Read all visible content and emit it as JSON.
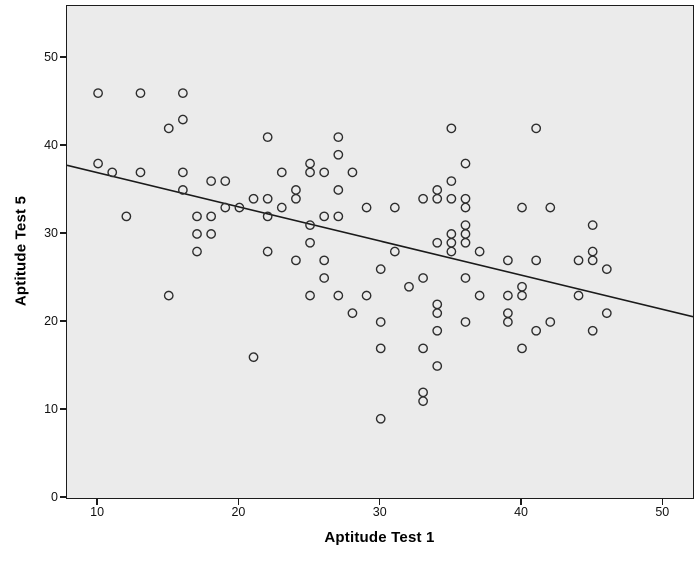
{
  "figure": {
    "kind": "scatterplot-with-fit-line",
    "background_color": "#ffffff",
    "panel_color": "#ebebeb",
    "frame_color": "#1c1c1c",
    "marker_color": "#2d2d2d",
    "fit_line_color": "#1a1a1a"
  },
  "chart_data": {
    "type": "scatter",
    "title": "",
    "xlabel": "Aptitude Test 1",
    "ylabel": "Aptitude Test 5",
    "xlim": [
      7.8,
      52.1
    ],
    "ylim": [
      0,
      55.9
    ],
    "x_ticks": [
      10,
      20,
      30,
      40,
      50
    ],
    "y_ticks": [
      0,
      10,
      20,
      30,
      40,
      50
    ],
    "grid": false,
    "legend": "none",
    "fit_line": {
      "x1": 7.8,
      "y1": 37.8,
      "x2": 52.1,
      "y2": 20.6
    },
    "points": [
      [
        10,
        46
      ],
      [
        13,
        46
      ],
      [
        16,
        46
      ],
      [
        16,
        43
      ],
      [
        15,
        42
      ],
      [
        35,
        42
      ],
      [
        41,
        42
      ],
      [
        22,
        41
      ],
      [
        27,
        41
      ],
      [
        27,
        39
      ],
      [
        10,
        38
      ],
      [
        25,
        38
      ],
      [
        36,
        38
      ],
      [
        11,
        37
      ],
      [
        13,
        37
      ],
      [
        16,
        37
      ],
      [
        23,
        37
      ],
      [
        25,
        37
      ],
      [
        26,
        37
      ],
      [
        28,
        37
      ],
      [
        18,
        36
      ],
      [
        19,
        36
      ],
      [
        35,
        36
      ],
      [
        16,
        35
      ],
      [
        24,
        35
      ],
      [
        27,
        35
      ],
      [
        34,
        35
      ],
      [
        21,
        34
      ],
      [
        22,
        34
      ],
      [
        24,
        34
      ],
      [
        33,
        34
      ],
      [
        34,
        34
      ],
      [
        35,
        34
      ],
      [
        36,
        34
      ],
      [
        19,
        33
      ],
      [
        20,
        33
      ],
      [
        23,
        33
      ],
      [
        29,
        33
      ],
      [
        31,
        33
      ],
      [
        36,
        33
      ],
      [
        40,
        33
      ],
      [
        42,
        33
      ],
      [
        12,
        32
      ],
      [
        17,
        32
      ],
      [
        18,
        32
      ],
      [
        22,
        32
      ],
      [
        26,
        32
      ],
      [
        27,
        32
      ],
      [
        25,
        31
      ],
      [
        36,
        31
      ],
      [
        45,
        31
      ],
      [
        17,
        30
      ],
      [
        18,
        30
      ],
      [
        35,
        30
      ],
      [
        36,
        30
      ],
      [
        25,
        29
      ],
      [
        34,
        29
      ],
      [
        35,
        29
      ],
      [
        36,
        29
      ],
      [
        17,
        28
      ],
      [
        22,
        28
      ],
      [
        31,
        28
      ],
      [
        35,
        28
      ],
      [
        37,
        28
      ],
      [
        45,
        28
      ],
      [
        24,
        27
      ],
      [
        26,
        27
      ],
      [
        39,
        27
      ],
      [
        41,
        27
      ],
      [
        44,
        27
      ],
      [
        45,
        27
      ],
      [
        30,
        26
      ],
      [
        46,
        26
      ],
      [
        26,
        25
      ],
      [
        33,
        25
      ],
      [
        36,
        25
      ],
      [
        32,
        24
      ],
      [
        40,
        24
      ],
      [
        15,
        23
      ],
      [
        25,
        23
      ],
      [
        27,
        23
      ],
      [
        29,
        23
      ],
      [
        37,
        23
      ],
      [
        39,
        23
      ],
      [
        40,
        23
      ],
      [
        44,
        23
      ],
      [
        34,
        22
      ],
      [
        28,
        21
      ],
      [
        34,
        21
      ],
      [
        39,
        21
      ],
      [
        46,
        21
      ],
      [
        30,
        20
      ],
      [
        36,
        20
      ],
      [
        39,
        20
      ],
      [
        42,
        20
      ],
      [
        34,
        19
      ],
      [
        41,
        19
      ],
      [
        45,
        19
      ],
      [
        30,
        17
      ],
      [
        33,
        17
      ],
      [
        40,
        17
      ],
      [
        21,
        16
      ],
      [
        34,
        15
      ],
      [
        33,
        12
      ],
      [
        33,
        11
      ],
      [
        30,
        9
      ]
    ]
  }
}
